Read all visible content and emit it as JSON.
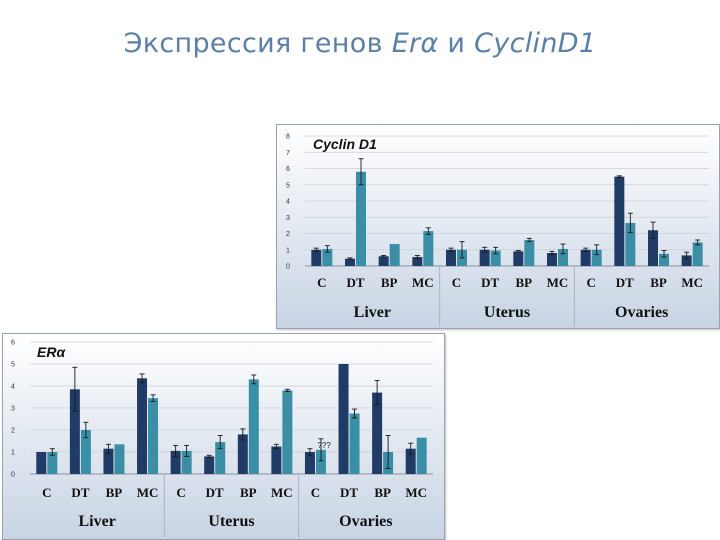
{
  "slide": {
    "title_plain": "Экспрессия генов ",
    "title_gene1": "Erα",
    "title_and": " и ",
    "title_gene2": "CyclinD1"
  },
  "colors": {
    "dark_bar": "#1f3b66",
    "teal_bar": "#3a8ea6",
    "bg_top": "#ffffff",
    "bg_bottom": "#c8d4e4",
    "grid": "#c9d0d8"
  },
  "chart_data": [
    {
      "type": "bar",
      "title": "Cyclin D1",
      "yticks": [
        "0",
        "1",
        "2",
        "3",
        "4",
        "5",
        "6",
        "7",
        "8"
      ],
      "ylim": [
        0,
        8
      ],
      "grid": true,
      "groups": [
        "Liver",
        "Uterus",
        "Ovaries"
      ],
      "categories": [
        "C",
        "DT",
        "BP",
        "MC",
        "C",
        "DT",
        "BP",
        "MC",
        "C",
        "DT",
        "BP",
        "MC"
      ],
      "series": [
        {
          "values": [
            1.0,
            0.45,
            0.6,
            0.55,
            1.0,
            1.0,
            0.9,
            0.8,
            1.0,
            5.5,
            2.2,
            0.65
          ],
          "errors": [
            0.1,
            0.05,
            0.05,
            0.1,
            0.1,
            0.15,
            0.05,
            0.1,
            0.1,
            0.05,
            0.5,
            0.2
          ]
        },
        {
          "values": [
            1.05,
            5.8,
            1.35,
            2.15,
            1.0,
            0.95,
            1.6,
            1.05,
            1.0,
            2.65,
            0.75,
            1.45
          ],
          "errors": [
            0.2,
            0.8,
            0.0,
            0.2,
            0.5,
            0.2,
            0.1,
            0.3,
            0.3,
            0.6,
            0.2,
            0.15
          ]
        }
      ],
      "annotations": []
    },
    {
      "type": "bar",
      "title": "ERα",
      "yticks": [
        "0",
        "1",
        "2",
        "3",
        "4",
        "5",
        "6"
      ],
      "ylim": [
        0,
        6
      ],
      "grid": true,
      "groups": [
        "Liver",
        "Uterus",
        "Ovaries"
      ],
      "categories": [
        "C",
        "DT",
        "BP",
        "MC",
        "C",
        "DT",
        "BP",
        "MC",
        "C",
        "DT",
        "BP",
        "MC"
      ],
      "series": [
        {
          "values": [
            1.0,
            3.85,
            1.15,
            4.35,
            1.05,
            0.8,
            1.8,
            1.25,
            1.0,
            5.0,
            3.7,
            1.15
          ],
          "errors": [
            0.0,
            1.0,
            0.2,
            0.2,
            0.25,
            0.05,
            0.25,
            0.1,
            0.15,
            0.0,
            0.55,
            0.25
          ]
        },
        {
          "values": [
            1.0,
            2.0,
            1.35,
            3.45,
            1.05,
            1.45,
            4.3,
            3.8,
            1.1,
            2.75,
            1.0,
            1.65
          ],
          "errors": [
            0.15,
            0.35,
            0.0,
            0.15,
            0.25,
            0.3,
            0.2,
            0.05,
            0.5,
            0.2,
            0.75,
            0.0
          ]
        }
      ],
      "annotations": [
        {
          "category_index": 8,
          "text": "???"
        }
      ]
    }
  ]
}
